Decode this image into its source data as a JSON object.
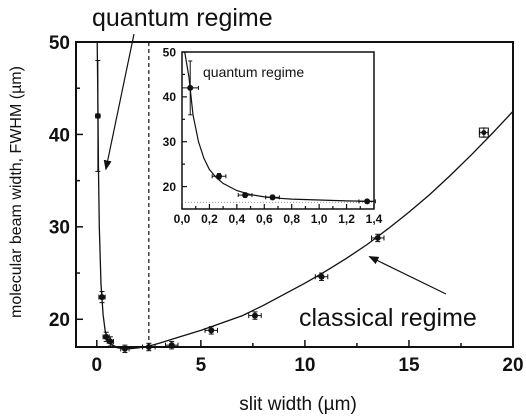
{
  "chart_data": [
    {
      "type": "scatter",
      "xlabel": "slit width (µm)",
      "ylabel": "molecular beam width, FWHM (µm)",
      "xlim": [
        -1.0,
        20.0
      ],
      "ylim": [
        17.0,
        50.0
      ],
      "x_ticks": [
        0,
        5,
        10,
        15,
        20
      ],
      "x_tick_labels": [
        "0",
        "5",
        "10",
        "15",
        "20"
      ],
      "y_ticks": [
        20,
        30,
        40,
        50
      ],
      "y_tick_labels": [
        "20",
        "30",
        "40",
        "50"
      ],
      "grid": false,
      "legend": "none",
      "vline_x": 2.5,
      "points": [
        {
          "x": 0.05,
          "y": 42.0,
          "xerr": 0.1,
          "yerr": 6.0,
          "marker": "circle"
        },
        {
          "x": 0.25,
          "y": 22.4,
          "xerr": 0.15,
          "yerr": 0.6,
          "marker": "circle"
        },
        {
          "x": 0.45,
          "y": 18.1,
          "xerr": 0.15,
          "yerr": 0.5,
          "marker": "circle"
        },
        {
          "x": 0.65,
          "y": 17.6,
          "xerr": 0.15,
          "yerr": 0.5,
          "marker": "circle"
        },
        {
          "x": 1.35,
          "y": 16.8,
          "xerr": 0.2,
          "yerr": 0.4,
          "marker": "circle"
        },
        {
          "x": 2.5,
          "y": 17.0,
          "xerr": 0.3,
          "yerr": 0.4,
          "marker": "circle"
        },
        {
          "x": 3.6,
          "y": 17.2,
          "xerr": 0.3,
          "yerr": 0.4,
          "marker": "circle"
        },
        {
          "x": 5.5,
          "y": 18.8,
          "xerr": 0.3,
          "yerr": 0.4,
          "marker": "circle"
        },
        {
          "x": 7.6,
          "y": 20.4,
          "xerr": 0.3,
          "yerr": 0.4,
          "marker": "circle"
        },
        {
          "x": 10.8,
          "y": 24.6,
          "xerr": 0.3,
          "yerr": 0.4,
          "marker": "circle"
        },
        {
          "x": 13.5,
          "y": 28.8,
          "xerr": 0.3,
          "yerr": 0.4,
          "marker": "circle"
        },
        {
          "x": 18.6,
          "y": 40.2,
          "xerr": 0.2,
          "yerr": 0.5,
          "marker": "square"
        }
      ],
      "fit_curve": {
        "x": [
          0.02,
          0.05,
          0.08,
          0.12,
          0.2,
          0.3,
          0.4,
          0.5,
          0.7,
          1.0,
          1.5,
          2.0,
          2.5,
          3.0,
          4.0,
          5.0,
          6.0,
          7.0,
          8.0,
          9.0,
          10.0,
          11.0,
          12.0,
          13.0,
          14.0,
          15.0,
          16.0,
          17.0,
          18.0,
          19.0,
          20.0
        ],
        "y": [
          53.0,
          44.5,
          36.0,
          30.0,
          23.8,
          20.5,
          18.8,
          17.9,
          17.3,
          16.9,
          16.8,
          16.9,
          17.1,
          17.4,
          18.1,
          18.8,
          19.6,
          20.4,
          21.5,
          22.7,
          23.9,
          25.2,
          26.6,
          28.1,
          29.8,
          31.6,
          33.5,
          35.6,
          37.8,
          40.1,
          42.5
        ]
      },
      "annotations": [
        {
          "text": "quantum regime",
          "arrow_to": {
            "x": 0.05,
            "y": 36.0
          }
        },
        {
          "text": "classical regime",
          "arrow_to": {
            "x": 13.0,
            "y": 27.0
          }
        }
      ]
    },
    {
      "type": "scatter",
      "xlim": [
        0.0,
        1.4
      ],
      "ylim": [
        15.0,
        50.0
      ],
      "x_ticks": [
        0.0,
        0.2,
        0.4,
        0.6,
        0.8,
        1.0,
        1.2,
        1.4
      ],
      "x_tick_labels": [
        "0,0",
        "0,2",
        "0,4",
        "0,6",
        "0,8",
        "1,0",
        "1,2",
        "1,4"
      ],
      "y_ticks": [
        20,
        30,
        40,
        50
      ],
      "y_tick_labels": [
        "20",
        "30",
        "40",
        "50"
      ],
      "grid": false,
      "legend": "none",
      "points": [
        {
          "x": 0.06,
          "y": 42.0,
          "xerr": 0.06,
          "yerr": 6.0
        },
        {
          "x": 0.27,
          "y": 22.3,
          "xerr": 0.05,
          "yerr": 0.6
        },
        {
          "x": 0.46,
          "y": 18.1,
          "xerr": 0.05,
          "yerr": 0.5
        },
        {
          "x": 0.66,
          "y": 17.6,
          "xerr": 0.05,
          "yerr": 0.5
        },
        {
          "x": 1.35,
          "y": 16.7,
          "xerr": 0.06,
          "yerr": 0.4
        }
      ],
      "fit_curve": {
        "x": [
          0.02,
          0.05,
          0.08,
          0.12,
          0.16,
          0.2,
          0.25,
          0.3,
          0.4,
          0.5,
          0.6,
          0.7,
          0.8,
          1.0,
          1.2,
          1.4
        ],
        "y": [
          51.0,
          44.5,
          36.0,
          30.0,
          26.3,
          23.8,
          22.0,
          20.7,
          19.1,
          18.2,
          17.7,
          17.4,
          17.2,
          17.0,
          16.8,
          16.7
        ]
      },
      "annotations": [
        {
          "text": "quantum regime"
        }
      ]
    }
  ]
}
